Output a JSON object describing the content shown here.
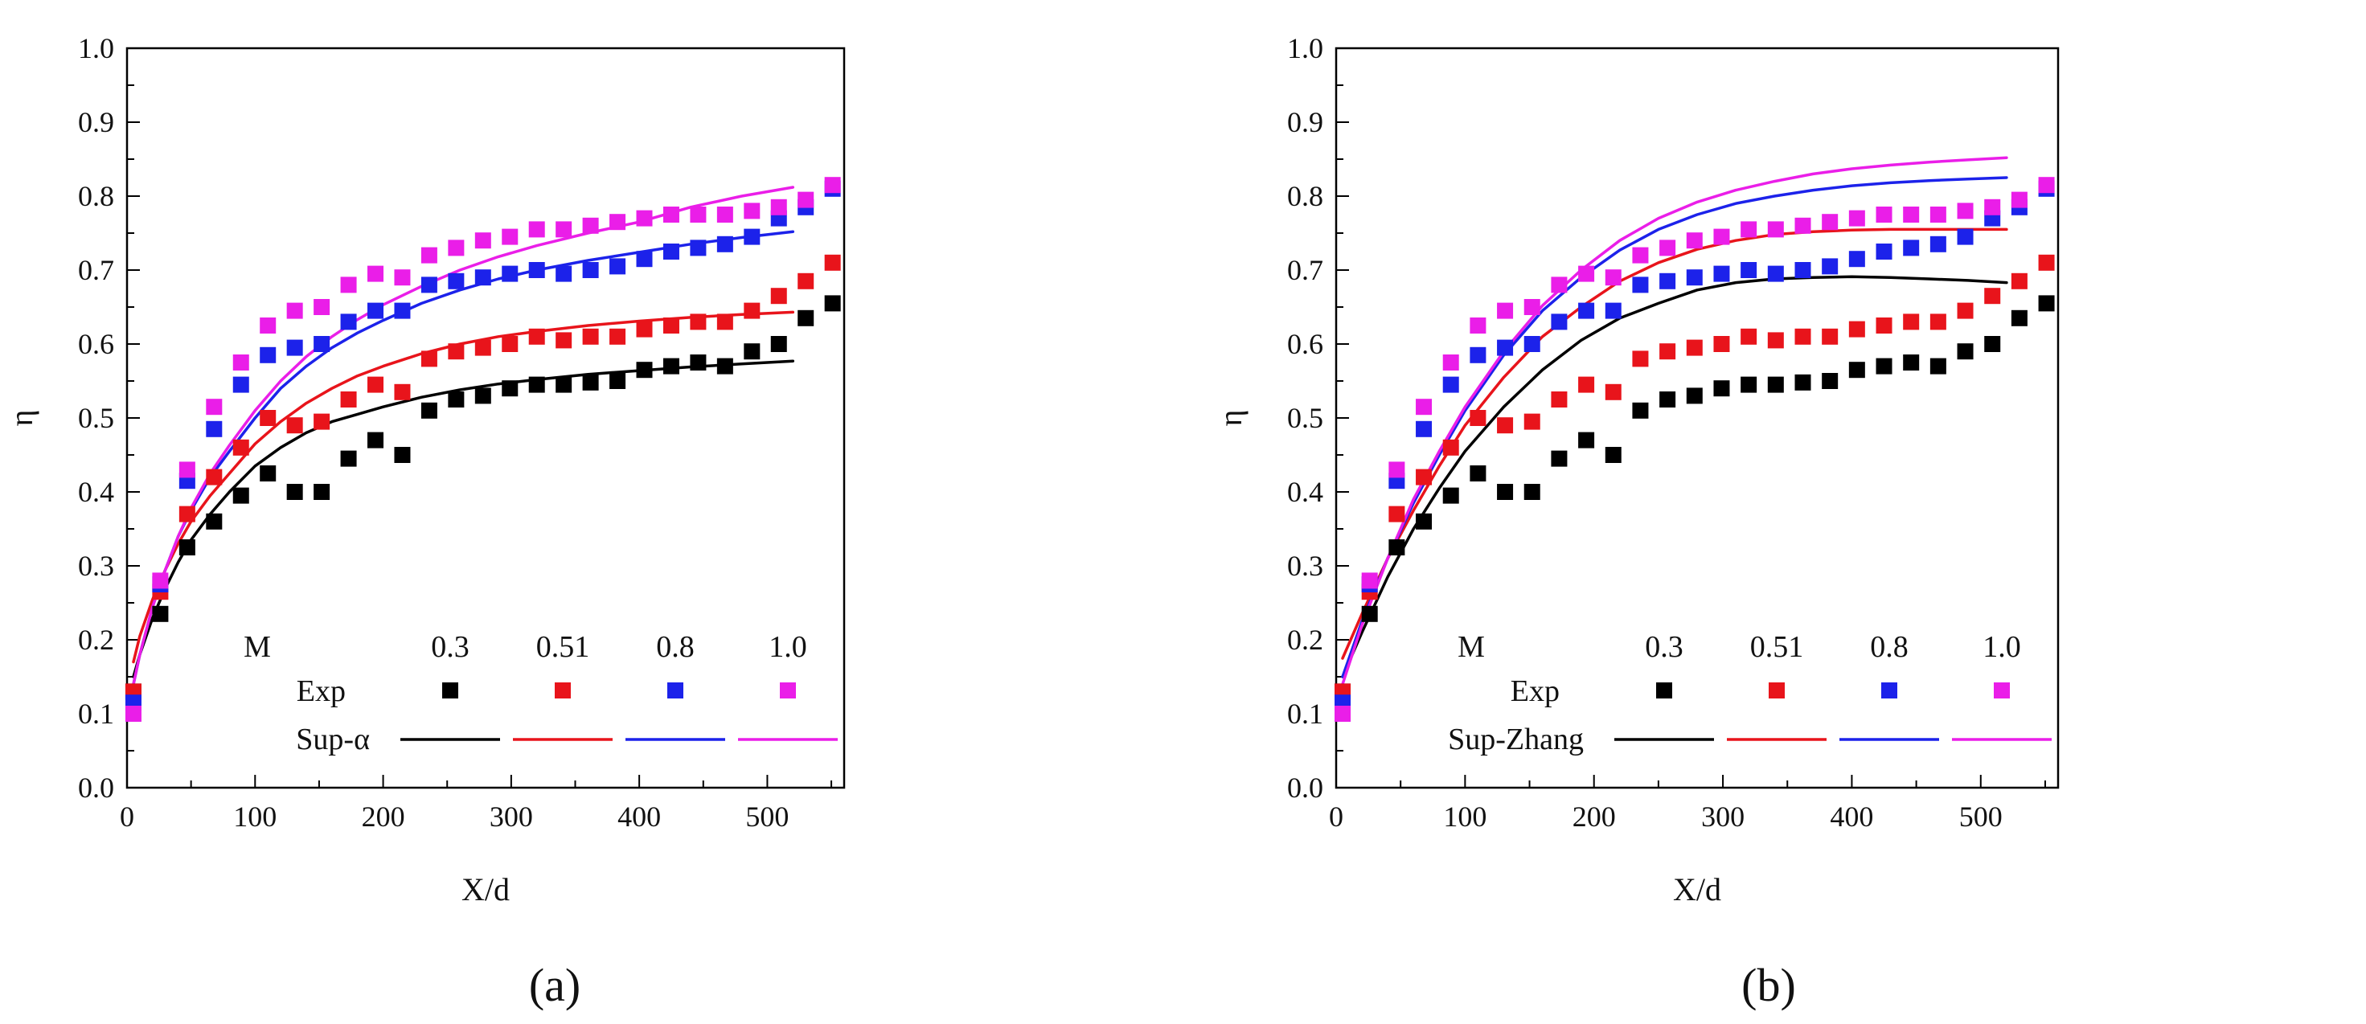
{
  "chart_data": [
    {
      "type": "scatter",
      "panel_label": "(a)",
      "xlabel": "X/d",
      "ylabel": "η",
      "xlim": [
        0,
        560
      ],
      "ylim": [
        0.0,
        1.0
      ],
      "xticks": [
        0,
        100,
        200,
        300,
        400,
        500
      ],
      "yticks": [
        0.0,
        0.1,
        0.2,
        0.3,
        0.4,
        0.5,
        0.6,
        0.7,
        0.8,
        0.9,
        1.0
      ],
      "legend": {
        "header_label": "M",
        "series_labels": [
          "0.3",
          "0.51",
          "0.8",
          "1.0"
        ],
        "exp_label": "Exp",
        "model_label": "Sup-α",
        "placement": "bottom-right"
      },
      "x": [
        5,
        26,
        47,
        68,
        89,
        110,
        131,
        152,
        173,
        194,
        215,
        236,
        257,
        278,
        299,
        320,
        341,
        362,
        383,
        404,
        425,
        446,
        467,
        488,
        509,
        530,
        551
      ],
      "series": [
        {
          "name": "0.3",
          "color": "#000000",
          "values": [
            0.13,
            0.235,
            0.325,
            0.36,
            0.395,
            0.425,
            0.4,
            0.4,
            0.445,
            0.47,
            0.45,
            0.51,
            0.525,
            0.53,
            0.54,
            0.545,
            0.545,
            0.548,
            0.55,
            0.565,
            0.57,
            0.575,
            0.57,
            0.59,
            0.6,
            0.635,
            0.655
          ],
          "model_x": [
            5,
            10,
            20,
            30,
            40,
            50,
            65,
            80,
            100,
            120,
            140,
            160,
            180,
            200,
            230,
            260,
            290,
            320,
            360,
            400,
            440,
            480,
            520
          ],
          "model_y": [
            0.15,
            0.18,
            0.23,
            0.27,
            0.305,
            0.335,
            0.37,
            0.4,
            0.435,
            0.46,
            0.48,
            0.495,
            0.505,
            0.515,
            0.528,
            0.538,
            0.546,
            0.552,
            0.559,
            0.564,
            0.569,
            0.573,
            0.577
          ]
        },
        {
          "name": "0.51",
          "color": "#e8141b",
          "values": [
            0.13,
            0.265,
            0.37,
            0.42,
            0.46,
            0.5,
            0.49,
            0.495,
            0.525,
            0.545,
            0.535,
            0.58,
            0.59,
            0.595,
            0.6,
            0.61,
            0.605,
            0.61,
            0.61,
            0.62,
            0.625,
            0.63,
            0.63,
            0.645,
            0.665,
            0.685,
            0.71
          ],
          "model_x": [
            5,
            10,
            20,
            30,
            40,
            50,
            65,
            80,
            100,
            120,
            140,
            160,
            180,
            200,
            230,
            260,
            290,
            320,
            360,
            400,
            440,
            480,
            520
          ],
          "model_y": [
            0.17,
            0.205,
            0.255,
            0.295,
            0.33,
            0.36,
            0.395,
            0.425,
            0.465,
            0.495,
            0.52,
            0.54,
            0.557,
            0.57,
            0.587,
            0.6,
            0.61,
            0.617,
            0.625,
            0.631,
            0.636,
            0.64,
            0.643
          ]
        },
        {
          "name": "0.8",
          "color": "#1c22ea",
          "values": [
            0.115,
            0.275,
            0.415,
            0.485,
            0.545,
            0.585,
            0.595,
            0.6,
            0.63,
            0.645,
            0.645,
            0.68,
            0.685,
            0.69,
            0.695,
            0.7,
            0.695,
            0.7,
            0.705,
            0.715,
            0.725,
            0.73,
            0.735,
            0.745,
            0.77,
            0.785,
            0.81
          ],
          "model_x": [
            5,
            10,
            20,
            30,
            40,
            50,
            65,
            80,
            100,
            120,
            140,
            160,
            180,
            200,
            230,
            260,
            290,
            320,
            360,
            400,
            440,
            480,
            520
          ],
          "model_y": [
            0.14,
            0.18,
            0.245,
            0.295,
            0.34,
            0.375,
            0.42,
            0.455,
            0.5,
            0.54,
            0.57,
            0.595,
            0.615,
            0.632,
            0.655,
            0.673,
            0.688,
            0.7,
            0.713,
            0.724,
            0.735,
            0.744,
            0.752
          ]
        },
        {
          "name": "1.0",
          "color": "#ea1ee8",
          "values": [
            0.1,
            0.28,
            0.43,
            0.515,
            0.575,
            0.625,
            0.645,
            0.65,
            0.68,
            0.695,
            0.69,
            0.72,
            0.73,
            0.74,
            0.745,
            0.755,
            0.755,
            0.76,
            0.765,
            0.77,
            0.775,
            0.775,
            0.775,
            0.78,
            0.785,
            0.795,
            0.815
          ],
          "model_x": [
            5,
            10,
            20,
            30,
            40,
            50,
            65,
            80,
            100,
            120,
            140,
            160,
            180,
            200,
            230,
            260,
            290,
            320,
            360,
            400,
            440,
            480,
            520
          ],
          "model_y": [
            0.14,
            0.18,
            0.245,
            0.295,
            0.34,
            0.378,
            0.425,
            0.463,
            0.51,
            0.55,
            0.583,
            0.61,
            0.633,
            0.653,
            0.678,
            0.7,
            0.718,
            0.733,
            0.75,
            0.765,
            0.785,
            0.8,
            0.812
          ]
        }
      ]
    },
    {
      "type": "scatter",
      "panel_label": "(b)",
      "xlabel": "X/d",
      "ylabel": "η",
      "xlim": [
        0,
        560
      ],
      "ylim": [
        0.0,
        1.0
      ],
      "xticks": [
        0,
        100,
        200,
        300,
        400,
        500
      ],
      "yticks": [
        0.0,
        0.1,
        0.2,
        0.3,
        0.4,
        0.5,
        0.6,
        0.7,
        0.8,
        0.9,
        1.0
      ],
      "legend": {
        "header_label": "M",
        "series_labels": [
          "0.3",
          "0.51",
          "0.8",
          "1.0"
        ],
        "exp_label": "Exp",
        "model_label": "Sup-Zhang",
        "placement": "bottom-right"
      },
      "x": [
        5,
        26,
        47,
        68,
        89,
        110,
        131,
        152,
        173,
        194,
        215,
        236,
        257,
        278,
        299,
        320,
        341,
        362,
        383,
        404,
        425,
        446,
        467,
        488,
        509,
        530,
        551
      ],
      "series": [
        {
          "name": "0.3",
          "color": "#000000",
          "values": [
            0.13,
            0.235,
            0.325,
            0.36,
            0.395,
            0.425,
            0.4,
            0.4,
            0.445,
            0.47,
            0.45,
            0.51,
            0.525,
            0.53,
            0.54,
            0.545,
            0.545,
            0.548,
            0.55,
            0.565,
            0.57,
            0.575,
            0.57,
            0.59,
            0.6,
            0.635,
            0.655
          ],
          "model_x": [
            5,
            20,
            40,
            60,
            80,
            100,
            130,
            160,
            190,
            220,
            250,
            280,
            310,
            340,
            370,
            400,
            430,
            460,
            490,
            520
          ],
          "model_y": [
            0.15,
            0.21,
            0.285,
            0.35,
            0.405,
            0.455,
            0.515,
            0.565,
            0.605,
            0.635,
            0.655,
            0.673,
            0.683,
            0.688,
            0.69,
            0.691,
            0.69,
            0.688,
            0.686,
            0.683
          ]
        },
        {
          "name": "0.51",
          "color": "#e8141b",
          "values": [
            0.13,
            0.265,
            0.37,
            0.42,
            0.46,
            0.5,
            0.49,
            0.495,
            0.525,
            0.545,
            0.535,
            0.58,
            0.59,
            0.595,
            0.6,
            0.61,
            0.605,
            0.61,
            0.61,
            0.62,
            0.625,
            0.63,
            0.63,
            0.645,
            0.665,
            0.685,
            0.71
          ],
          "model_x": [
            5,
            20,
            40,
            60,
            80,
            100,
            130,
            160,
            190,
            220,
            250,
            280,
            310,
            340,
            370,
            400,
            430,
            460,
            490,
            520
          ],
          "model_y": [
            0.175,
            0.235,
            0.31,
            0.375,
            0.435,
            0.49,
            0.555,
            0.61,
            0.65,
            0.685,
            0.71,
            0.728,
            0.74,
            0.748,
            0.752,
            0.754,
            0.755,
            0.755,
            0.755,
            0.755
          ]
        },
        {
          "name": "0.8",
          "color": "#1c22ea",
          "values": [
            0.115,
            0.275,
            0.415,
            0.485,
            0.545,
            0.585,
            0.595,
            0.6,
            0.63,
            0.645,
            0.645,
            0.68,
            0.685,
            0.69,
            0.695,
            0.7,
            0.695,
            0.7,
            0.705,
            0.715,
            0.725,
            0.73,
            0.735,
            0.745,
            0.77,
            0.785,
            0.81
          ],
          "model_x": [
            5,
            20,
            40,
            60,
            80,
            100,
            130,
            160,
            190,
            220,
            250,
            280,
            310,
            340,
            370,
            400,
            430,
            460,
            490,
            520
          ],
          "model_y": [
            0.15,
            0.225,
            0.31,
            0.385,
            0.45,
            0.51,
            0.585,
            0.645,
            0.69,
            0.727,
            0.755,
            0.775,
            0.79,
            0.8,
            0.808,
            0.814,
            0.818,
            0.821,
            0.823,
            0.825
          ]
        },
        {
          "name": "1.0",
          "color": "#ea1ee8",
          "values": [
            0.1,
            0.28,
            0.43,
            0.515,
            0.575,
            0.625,
            0.645,
            0.65,
            0.68,
            0.695,
            0.69,
            0.72,
            0.73,
            0.74,
            0.745,
            0.755,
            0.755,
            0.76,
            0.765,
            0.77,
            0.775,
            0.775,
            0.775,
            0.78,
            0.785,
            0.795,
            0.815
          ],
          "model_x": [
            5,
            20,
            40,
            60,
            80,
            100,
            130,
            160,
            190,
            220,
            250,
            280,
            310,
            340,
            370,
            400,
            430,
            460,
            490,
            520
          ],
          "model_y": [
            0.14,
            0.22,
            0.31,
            0.39,
            0.455,
            0.515,
            0.59,
            0.652,
            0.7,
            0.74,
            0.77,
            0.792,
            0.808,
            0.82,
            0.83,
            0.837,
            0.842,
            0.846,
            0.849,
            0.852
          ]
        }
      ]
    }
  ]
}
